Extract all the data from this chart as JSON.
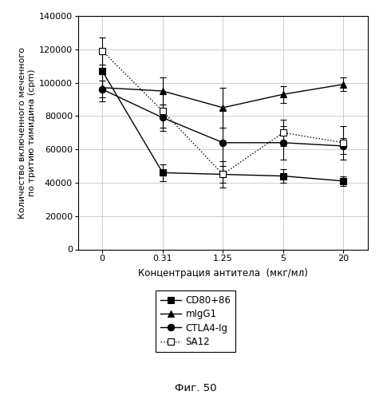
{
  "x_positions": [
    0,
    1,
    2,
    3,
    4
  ],
  "x_labels": [
    "0",
    "0.31",
    "1.25",
    "5",
    "20"
  ],
  "xlabel": "Концентрация антитела  (мкг/мл)",
  "ylabel_line1": "Количество включенного меченного",
  "ylabel_line2": "по тритию тимидина (cpm)",
  "ylim": [
    0,
    140000
  ],
  "yticks": [
    0,
    20000,
    40000,
    60000,
    80000,
    100000,
    120000,
    140000
  ],
  "ytick_labels": [
    "0",
    "20000",
    "40000",
    "60000",
    "80000",
    "100000",
    "120000",
    "140000"
  ],
  "caption": "Фиг. 50",
  "series": [
    {
      "label": "CD80+86",
      "y": [
        107000,
        46000,
        45000,
        44000,
        41000
      ],
      "yerr_lo": [
        12000,
        5000,
        8000,
        4000,
        3000
      ],
      "yerr_hi": [
        12000,
        5000,
        8000,
        4000,
        3000
      ],
      "color": "#000000",
      "linestyle": "-",
      "marker": "s",
      "markerfacecolor": "#000000",
      "markersize": 6
    },
    {
      "label": "mIgG1",
      "y": [
        97000,
        95000,
        85000,
        93000,
        99000
      ],
      "yerr_lo": [
        8000,
        8000,
        12000,
        5000,
        4000
      ],
      "yerr_hi": [
        8000,
        8000,
        12000,
        5000,
        4000
      ],
      "color": "#000000",
      "linestyle": "-",
      "marker": "^",
      "markerfacecolor": "#000000",
      "markersize": 6
    },
    {
      "label": "CTLA4-Ig",
      "y": [
        96000,
        79000,
        64000,
        64000,
        62000
      ],
      "yerr_lo": [
        5000,
        8000,
        20000,
        10000,
        5000
      ],
      "yerr_hi": [
        5000,
        8000,
        20000,
        10000,
        5000
      ],
      "color": "#000000",
      "linestyle": "-",
      "marker": "o",
      "markerfacecolor": "#000000",
      "markersize": 6
    },
    {
      "label": "SA12",
      "y": [
        119000,
        83000,
        45000,
        70000,
        64000
      ],
      "yerr_lo": [
        8000,
        10000,
        5000,
        8000,
        10000
      ],
      "yerr_hi": [
        8000,
        10000,
        5000,
        8000,
        10000
      ],
      "color": "#000000",
      "linestyle": ":",
      "marker": "s",
      "markerfacecolor": "#ffffff",
      "markersize": 6
    }
  ],
  "background_color": "#ffffff",
  "figsize": [
    4.9,
    5.0
  ],
  "dpi": 100
}
